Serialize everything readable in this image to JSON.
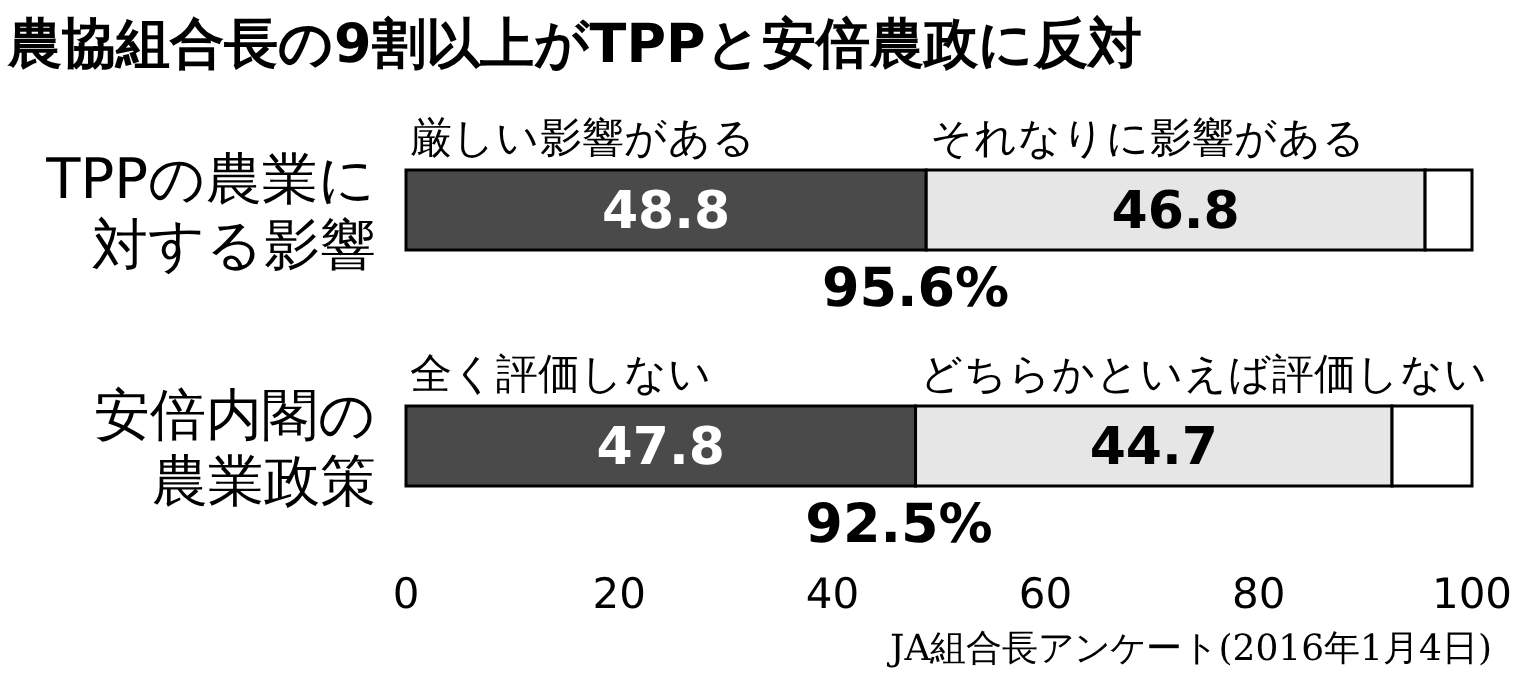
{
  "chart_data": {
    "type": "bar",
    "orientation": "horizontal",
    "stacked": true,
    "title": "農協組合長の9割以上がTPPと安倍農政に反対",
    "categories": [
      "TPPの農業に対する影響",
      "安倍内閣の農業政策"
    ],
    "series": [
      {
        "color": "#4a4a4a",
        "values": [
          48.8,
          47.8
        ],
        "value_labels": [
          "48.8",
          "47.8"
        ]
      },
      {
        "color": "#e6e6e6",
        "values": [
          46.8,
          44.7
        ],
        "value_labels": [
          "46.8",
          "44.7"
        ]
      },
      {
        "color": "#ffffff",
        "values": [
          4.4,
          7.5
        ]
      }
    ],
    "annotations": [
      {
        "text": "厳しい影響がある",
        "x": 0,
        "y": "TPPの農業に対する影響"
      },
      {
        "text": "それなりに影響がある",
        "x": 48.8,
        "y": "TPPの農業に対する影響"
      },
      {
        "text": "全く評価しない",
        "x": 0,
        "y": "安倍内閣の農業政策"
      },
      {
        "text": "どちらかといえば評価しない",
        "x": 47.8,
        "y": "安倍内閣の農業政策"
      },
      "95.6%",
      "92.5%",
      "JA組合長アンケート(2016年1月4日)"
    ],
    "xlim": [
      0,
      100
    ],
    "xticks": [
      0,
      20,
      40,
      60,
      80,
      100
    ]
  }
}
